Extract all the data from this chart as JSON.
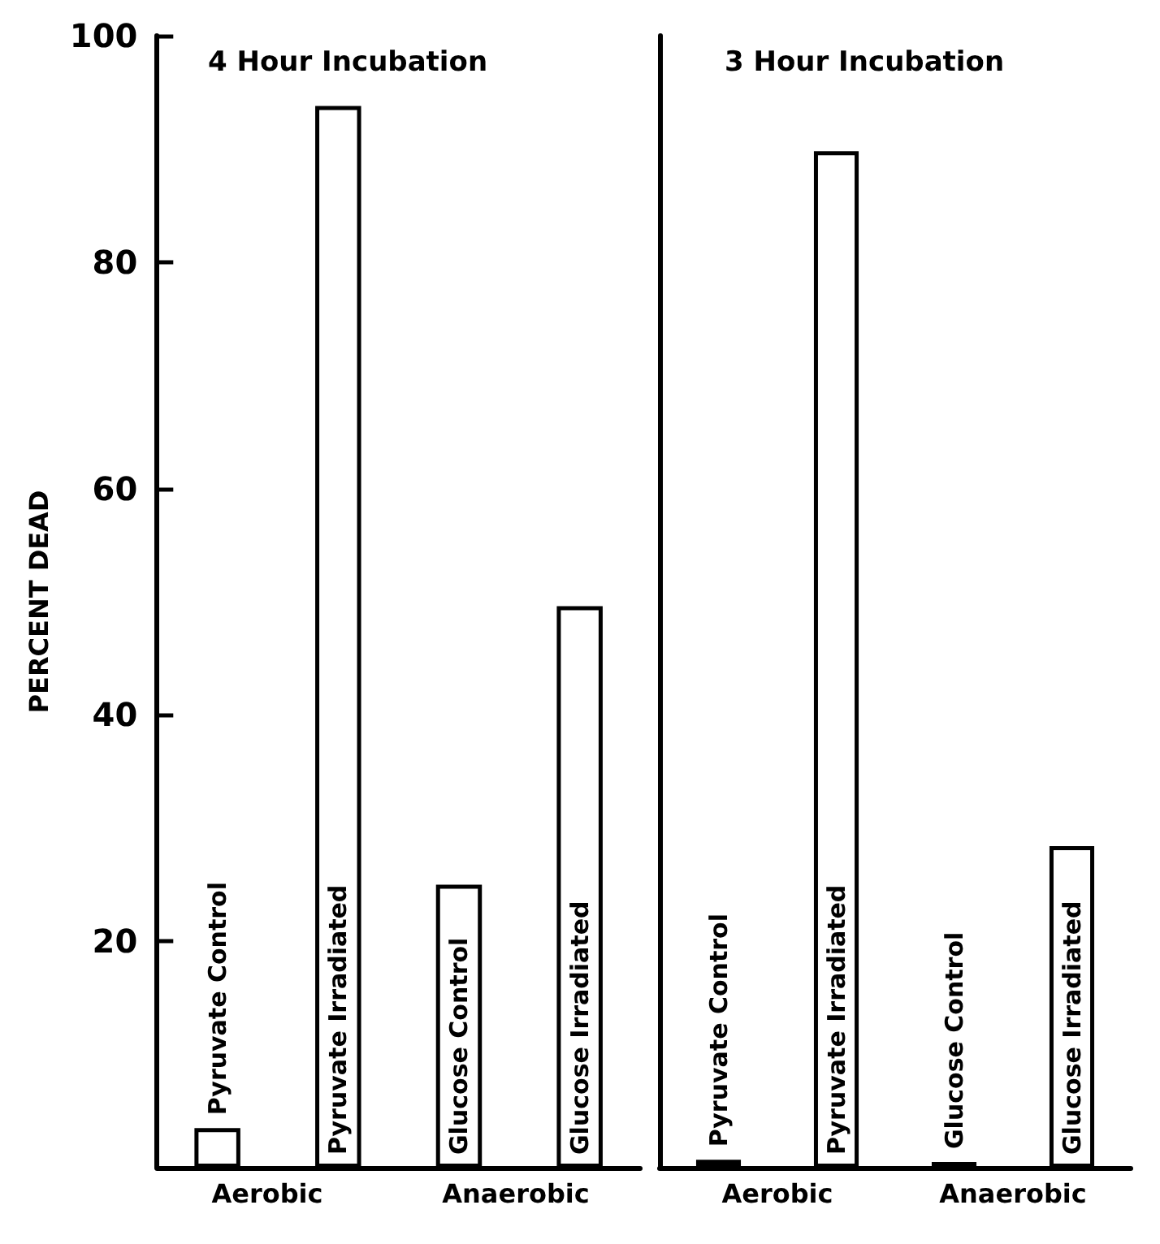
{
  "chart_data": [
    {
      "type": "bar",
      "title": "4 Hour Incubation",
      "ylabel": "PERCENT DEAD",
      "categories": [
        "Pyruvate Control",
        "Pyruvate Irradiated",
        "Glucose Control",
        "Glucose Irradiated"
      ],
      "values": [
        3.5,
        93.8,
        25,
        49.6
      ],
      "color": "#ffffff",
      "ylim": [
        0,
        100
      ],
      "yticks": [
        20,
        40,
        60,
        80,
        100
      ],
      "grid": false,
      "tick_labels": "y",
      "annotations": [
        "Aerobic",
        "Anaerobic"
      ]
    },
    {
      "type": "bar",
      "title": "3 Hour Incubation",
      "categories": [
        "Pyruvate Control",
        "Pyruvate Irradiated",
        "Glucose Control",
        "Glucose Irradiated"
      ],
      "values": [
        0.7,
        89.8,
        0.5,
        28.4
      ],
      "color": "#ffffff",
      "ylim": [
        0,
        100
      ],
      "yticks": [
        20,
        40,
        60,
        80,
        100
      ],
      "grid": false,
      "tick_labels": false,
      "annotations": [
        "Aerobic",
        "Anaerobic"
      ]
    }
  ]
}
